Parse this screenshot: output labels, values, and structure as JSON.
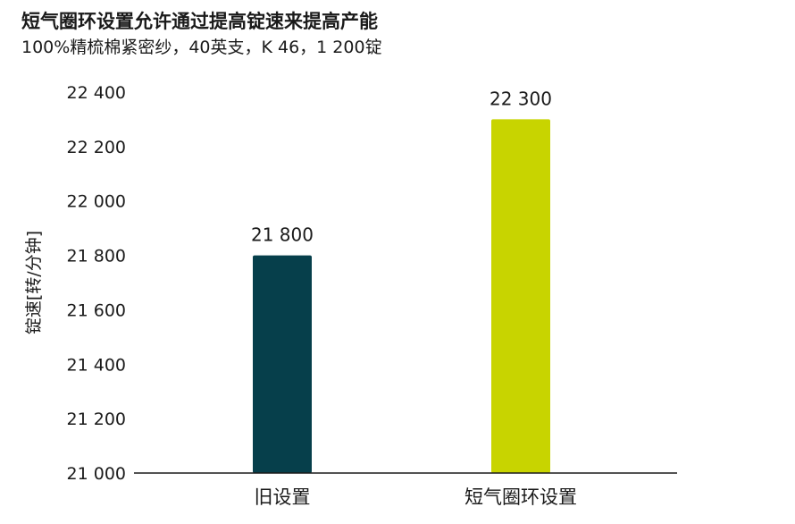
{
  "chart_data": {
    "type": "bar",
    "title": "短气圈环设置允许通过提高锭速来提高产能",
    "subtitle": "100%精梳棉紧密纱，40英支，K 46，1 200锭",
    "categories": [
      "旧设置",
      "短气圈环设置"
    ],
    "values": [
      21800,
      22300
    ],
    "value_labels": [
      "21 800",
      "22 300"
    ],
    "colors": [
      "#063f4b",
      "#c8d400"
    ],
    "ylabel": "锭速[转/分钟]",
    "ylim": [
      21000,
      22400
    ],
    "yticks": [
      21000,
      21200,
      21400,
      21600,
      21800,
      22000,
      22200,
      22400
    ],
    "ytick_labels": [
      "21 000",
      "21 200",
      "21 400",
      "21 600",
      "21 800",
      "22 000",
      "22 200",
      "22 400"
    ],
    "grid": false,
    "legend": "none"
  }
}
